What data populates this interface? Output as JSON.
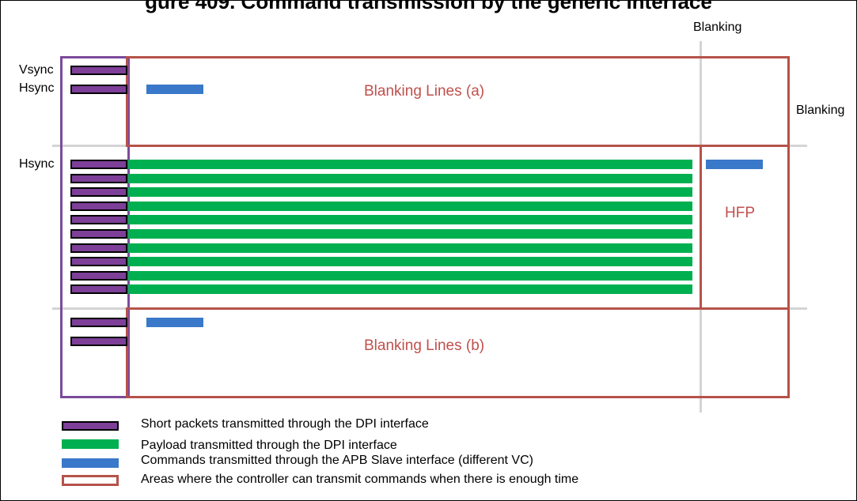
{
  "title": "gure 409. Command transmission by the generic interface",
  "labels": {
    "blanking_top": "Blanking",
    "blanking_right": "Blanking",
    "vsync": "Vsync",
    "hsync_top": "Hsync",
    "hsync_mid": "Hsync",
    "blanking_lines_a": "Blanking Lines (a)",
    "blanking_lines_b": "Blanking Lines (b)",
    "hfp": "HFP"
  },
  "legend": {
    "short_packets": "Short packets transmitted through the DPI interface",
    "payload": "Payload transmitted through the DPI interface",
    "commands": "Commands transmitted through the APB Slave interface (different VC)",
    "areas": "Areas where the controller can transmit commands when there is enough time"
  },
  "colors": {
    "short_packet": "#7d3f98",
    "payload": "#00b050",
    "command": "#3a78c9",
    "area_border": "#b5524a",
    "frame_border": "#7c4a9b",
    "label_red": "#c0504d"
  },
  "payload_line_count": 10
}
